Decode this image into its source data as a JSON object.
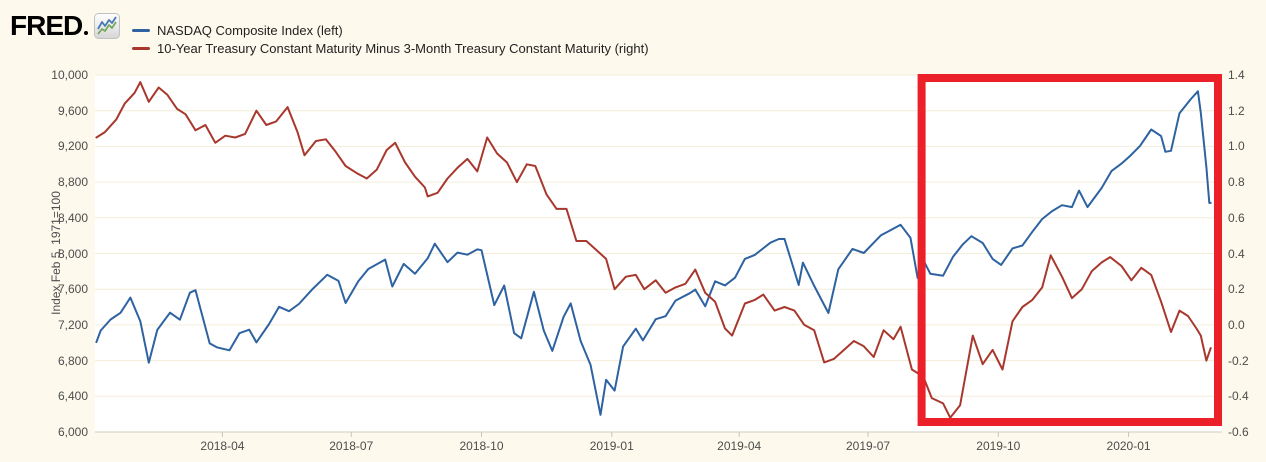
{
  "brand": {
    "logo_text": "FRED",
    "registered_mark_icon": "registered-dot",
    "sparkline_icon": "fred-sparkline-icon"
  },
  "legend": [
    {
      "label": "NASDAQ Composite Index (left)",
      "color": "#2e62a1"
    },
    {
      "label": "10-Year Treasury Constant Maturity Minus 3-Month Treasury Constant Maturity (right)",
      "color": "#a8382e"
    }
  ],
  "colors": {
    "background": "#fdf9ec",
    "plot_background": "#ffffff",
    "gridline": "#f3edd9",
    "axis_line": "#cfccbd",
    "tick": "#c9c6b8",
    "tick_text": "#4d4d4d",
    "legend_text": "#222222",
    "nasdaq_blue": "#2e62a1",
    "spread_red": "#a8382e",
    "annotation_red": "#ec2028",
    "logo_black": "#000000"
  },
  "chart_data": {
    "type": "line",
    "x_axis": {
      "range": [
        "2018-01-01",
        "2020-03-07"
      ],
      "ticks": [
        {
          "label": "2018-04",
          "date": "2018-04-01"
        },
        {
          "label": "2018-07",
          "date": "2018-07-01"
        },
        {
          "label": "2018-10",
          "date": "2018-10-01"
        },
        {
          "label": "2019-01",
          "date": "2019-01-01"
        },
        {
          "label": "2019-04",
          "date": "2019-04-01"
        },
        {
          "label": "2019-07",
          "date": "2019-07-01"
        },
        {
          "label": "2019-10",
          "date": "2019-10-01"
        },
        {
          "label": "2020-01",
          "date": "2020-01-01"
        }
      ],
      "vertical_grid": false
    },
    "left_y_axis": {
      "label": "Index Feb 5, 1971=100",
      "min": 6000,
      "max": 10000,
      "ticks": [
        {
          "label": "10,000",
          "value": 10000
        },
        {
          "label": "9,600",
          "value": 9600
        },
        {
          "label": "9,200",
          "value": 9200
        },
        {
          "label": "8,800",
          "value": 8800
        },
        {
          "label": "8,400",
          "value": 8400
        },
        {
          "label": "8,000",
          "value": 8000
        },
        {
          "label": "7,600",
          "value": 7600
        },
        {
          "label": "7,200",
          "value": 7200
        },
        {
          "label": "6,800",
          "value": 6800
        },
        {
          "label": "6,400",
          "value": 6400
        },
        {
          "label": "6,000",
          "value": 6000
        }
      ],
      "grid": true
    },
    "right_y_axis": {
      "min": -0.6,
      "max": 1.4,
      "ticks": [
        {
          "label": "1.4",
          "value": 1.4
        },
        {
          "label": "1.2",
          "value": 1.2
        },
        {
          "label": "1.0",
          "value": 1.0
        },
        {
          "label": "0.8",
          "value": 0.8
        },
        {
          "label": "0.6",
          "value": 0.6
        },
        {
          "label": "0.4",
          "value": 0.4
        },
        {
          "label": "0.2",
          "value": 0.2
        },
        {
          "label": "0.0",
          "value": 0.0
        },
        {
          "label": "-0.2",
          "value": -0.2
        },
        {
          "label": "-0.4",
          "value": -0.4
        },
        {
          "label": "-0.6",
          "value": -0.6
        }
      ]
    },
    "series": [
      {
        "name": "NASDAQ Composite Index",
        "axis": "left",
        "color": "#2e62a1",
        "points": [
          [
            "2018-01-02",
            7007
          ],
          [
            "2018-01-05",
            7137
          ],
          [
            "2018-01-12",
            7261
          ],
          [
            "2018-01-19",
            7336
          ],
          [
            "2018-01-26",
            7506
          ],
          [
            "2018-02-02",
            7241
          ],
          [
            "2018-02-08",
            6777
          ],
          [
            "2018-02-14",
            7144
          ],
          [
            "2018-02-23",
            7337
          ],
          [
            "2018-03-02",
            7258
          ],
          [
            "2018-03-09",
            7561
          ],
          [
            "2018-03-13",
            7589
          ],
          [
            "2018-03-23",
            6993
          ],
          [
            "2018-03-28",
            6949
          ],
          [
            "2018-04-06",
            6915
          ],
          [
            "2018-04-13",
            7107
          ],
          [
            "2018-04-20",
            7146
          ],
          [
            "2018-04-25",
            7004
          ],
          [
            "2018-05-04",
            7210
          ],
          [
            "2018-05-11",
            7403
          ],
          [
            "2018-05-18",
            7354
          ],
          [
            "2018-05-25",
            7434
          ],
          [
            "2018-06-04",
            7607
          ],
          [
            "2018-06-14",
            7761
          ],
          [
            "2018-06-22",
            7693
          ],
          [
            "2018-06-27",
            7445
          ],
          [
            "2018-07-06",
            7688
          ],
          [
            "2018-07-13",
            7826
          ],
          [
            "2018-07-25",
            7932
          ],
          [
            "2018-07-30",
            7630
          ],
          [
            "2018-08-07",
            7884
          ],
          [
            "2018-08-15",
            7774
          ],
          [
            "2018-08-24",
            7946
          ],
          [
            "2018-08-29",
            8110
          ],
          [
            "2018-09-07",
            7902
          ],
          [
            "2018-09-14",
            8010
          ],
          [
            "2018-09-21",
            7987
          ],
          [
            "2018-09-28",
            8046
          ],
          [
            "2018-10-01",
            8037
          ],
          [
            "2018-10-10",
            7422
          ],
          [
            "2018-10-17",
            7642
          ],
          [
            "2018-10-24",
            7108
          ],
          [
            "2018-10-29",
            7050
          ],
          [
            "2018-11-07",
            7571
          ],
          [
            "2018-11-14",
            7136
          ],
          [
            "2018-11-20",
            6909
          ],
          [
            "2018-11-28",
            7291
          ],
          [
            "2018-12-03",
            7441
          ],
          [
            "2018-12-10",
            7021
          ],
          [
            "2018-12-17",
            6754
          ],
          [
            "2018-12-24",
            6193
          ],
          [
            "2018-12-28",
            6585
          ],
          [
            "2019-01-03",
            6464
          ],
          [
            "2019-01-09",
            6957
          ],
          [
            "2019-01-18",
            7157
          ],
          [
            "2019-01-23",
            7026
          ],
          [
            "2019-02-01",
            7264
          ],
          [
            "2019-02-08",
            7298
          ],
          [
            "2019-02-15",
            7472
          ],
          [
            "2019-02-25",
            7554
          ],
          [
            "2019-03-01",
            7595
          ],
          [
            "2019-03-08",
            7408
          ],
          [
            "2019-03-15",
            7689
          ],
          [
            "2019-03-22",
            7643
          ],
          [
            "2019-03-29",
            7729
          ],
          [
            "2019-04-05",
            7939
          ],
          [
            "2019-04-12",
            7984
          ],
          [
            "2019-04-23",
            8121
          ],
          [
            "2019-04-29",
            8162
          ],
          [
            "2019-05-03",
            8164
          ],
          [
            "2019-05-13",
            7647
          ],
          [
            "2019-05-16",
            7898
          ],
          [
            "2019-05-24",
            7637
          ],
          [
            "2019-06-03",
            7333
          ],
          [
            "2019-06-10",
            7823
          ],
          [
            "2019-06-20",
            8051
          ],
          [
            "2019-06-28",
            8006
          ],
          [
            "2019-07-10",
            8203
          ],
          [
            "2019-07-24",
            8322
          ],
          [
            "2019-07-31",
            8175
          ],
          [
            "2019-08-05",
            7726
          ],
          [
            "2019-08-08",
            7959
          ],
          [
            "2019-08-14",
            7774
          ],
          [
            "2019-08-23",
            7751
          ],
          [
            "2019-08-30",
            7963
          ],
          [
            "2019-09-06",
            8103
          ],
          [
            "2019-09-12",
            8194
          ],
          [
            "2019-09-20",
            8118
          ],
          [
            "2019-09-27",
            7940
          ],
          [
            "2019-10-03",
            7872
          ],
          [
            "2019-10-11",
            8057
          ],
          [
            "2019-10-18",
            8090
          ],
          [
            "2019-10-25",
            8243
          ],
          [
            "2019-11-01",
            8386
          ],
          [
            "2019-11-08",
            8475
          ],
          [
            "2019-11-15",
            8541
          ],
          [
            "2019-11-22",
            8520
          ],
          [
            "2019-11-27",
            8705
          ],
          [
            "2019-12-03",
            8520
          ],
          [
            "2019-12-13",
            8735
          ],
          [
            "2019-12-20",
            8925
          ],
          [
            "2019-12-27",
            9007
          ],
          [
            "2020-01-02",
            9092
          ],
          [
            "2020-01-09",
            9203
          ],
          [
            "2020-01-17",
            9389
          ],
          [
            "2020-01-24",
            9315
          ],
          [
            "2020-01-27",
            9139
          ],
          [
            "2020-01-31",
            9151
          ],
          [
            "2020-02-06",
            9572
          ],
          [
            "2020-02-14",
            9731
          ],
          [
            "2020-02-19",
            9817
          ],
          [
            "2020-02-21",
            9577
          ],
          [
            "2020-02-25",
            8966
          ],
          [
            "2020-02-27",
            8567
          ],
          [
            "2020-02-28",
            8567
          ]
        ]
      },
      {
        "name": "10-Year Treasury Constant Maturity Minus 3-Month Treasury Constant Maturity",
        "axis": "right",
        "color": "#a8382e",
        "points": [
          [
            "2018-01-02",
            1.05
          ],
          [
            "2018-01-08",
            1.08
          ],
          [
            "2018-01-16",
            1.15
          ],
          [
            "2018-01-22",
            1.24
          ],
          [
            "2018-01-29",
            1.3
          ],
          [
            "2018-02-02",
            1.36
          ],
          [
            "2018-02-08",
            1.25
          ],
          [
            "2018-02-15",
            1.33
          ],
          [
            "2018-02-21",
            1.29
          ],
          [
            "2018-02-28",
            1.21
          ],
          [
            "2018-03-06",
            1.18
          ],
          [
            "2018-03-13",
            1.09
          ],
          [
            "2018-03-20",
            1.12
          ],
          [
            "2018-03-27",
            1.02
          ],
          [
            "2018-04-03",
            1.06
          ],
          [
            "2018-04-10",
            1.05
          ],
          [
            "2018-04-17",
            1.07
          ],
          [
            "2018-04-25",
            1.2
          ],
          [
            "2018-05-02",
            1.12
          ],
          [
            "2018-05-09",
            1.14
          ],
          [
            "2018-05-17",
            1.22
          ],
          [
            "2018-05-24",
            1.08
          ],
          [
            "2018-05-29",
            0.95
          ],
          [
            "2018-06-06",
            1.03
          ],
          [
            "2018-06-13",
            1.04
          ],
          [
            "2018-06-20",
            0.97
          ],
          [
            "2018-06-27",
            0.89
          ],
          [
            "2018-07-05",
            0.85
          ],
          [
            "2018-07-12",
            0.82
          ],
          [
            "2018-07-19",
            0.87
          ],
          [
            "2018-07-26",
            0.98
          ],
          [
            "2018-08-01",
            1.02
          ],
          [
            "2018-08-08",
            0.91
          ],
          [
            "2018-08-15",
            0.83
          ],
          [
            "2018-08-22",
            0.77
          ],
          [
            "2018-08-24",
            0.72
          ],
          [
            "2018-08-31",
            0.74
          ],
          [
            "2018-09-07",
            0.82
          ],
          [
            "2018-09-14",
            0.88
          ],
          [
            "2018-09-21",
            0.93
          ],
          [
            "2018-09-28",
            0.86
          ],
          [
            "2018-10-05",
            1.05
          ],
          [
            "2018-10-12",
            0.96
          ],
          [
            "2018-10-19",
            0.91
          ],
          [
            "2018-10-26",
            0.8
          ],
          [
            "2018-11-02",
            0.9
          ],
          [
            "2018-11-08",
            0.89
          ],
          [
            "2018-11-16",
            0.73
          ],
          [
            "2018-11-23",
            0.65
          ],
          [
            "2018-11-30",
            0.65
          ],
          [
            "2018-12-07",
            0.47
          ],
          [
            "2018-12-14",
            0.47
          ],
          [
            "2018-12-21",
            0.42
          ],
          [
            "2018-12-28",
            0.37
          ],
          [
            "2019-01-03",
            0.2
          ],
          [
            "2019-01-11",
            0.27
          ],
          [
            "2019-01-18",
            0.28
          ],
          [
            "2019-01-24",
            0.2
          ],
          [
            "2019-02-01",
            0.25
          ],
          [
            "2019-02-08",
            0.18
          ],
          [
            "2019-02-15",
            0.21
          ],
          [
            "2019-02-22",
            0.23
          ],
          [
            "2019-03-01",
            0.31
          ],
          [
            "2019-03-08",
            0.18
          ],
          [
            "2019-03-15",
            0.13
          ],
          [
            "2019-03-22",
            -0.02
          ],
          [
            "2019-03-27",
            -0.06
          ],
          [
            "2019-04-05",
            0.12
          ],
          [
            "2019-04-12",
            0.14
          ],
          [
            "2019-04-18",
            0.17
          ],
          [
            "2019-04-26",
            0.08
          ],
          [
            "2019-05-03",
            0.1
          ],
          [
            "2019-05-10",
            0.08
          ],
          [
            "2019-05-17",
            0.0
          ],
          [
            "2019-05-24",
            -0.03
          ],
          [
            "2019-05-31",
            -0.21
          ],
          [
            "2019-06-07",
            -0.19
          ],
          [
            "2019-06-14",
            -0.14
          ],
          [
            "2019-06-21",
            -0.09
          ],
          [
            "2019-06-28",
            -0.12
          ],
          [
            "2019-07-05",
            -0.18
          ],
          [
            "2019-07-12",
            -0.03
          ],
          [
            "2019-07-19",
            -0.08
          ],
          [
            "2019-07-24",
            -0.01
          ],
          [
            "2019-08-01",
            -0.25
          ],
          [
            "2019-08-09",
            -0.29
          ],
          [
            "2019-08-15",
            -0.41
          ],
          [
            "2019-08-23",
            -0.44
          ],
          [
            "2019-08-28",
            -0.52
          ],
          [
            "2019-09-04",
            -0.45
          ],
          [
            "2019-09-13",
            -0.06
          ],
          [
            "2019-09-20",
            -0.22
          ],
          [
            "2019-09-27",
            -0.14
          ],
          [
            "2019-10-04",
            -0.25
          ],
          [
            "2019-10-11",
            0.02
          ],
          [
            "2019-10-18",
            0.1
          ],
          [
            "2019-10-25",
            0.14
          ],
          [
            "2019-11-01",
            0.21
          ],
          [
            "2019-11-07",
            0.39
          ],
          [
            "2019-11-15",
            0.27
          ],
          [
            "2019-11-22",
            0.15
          ],
          [
            "2019-11-29",
            0.2
          ],
          [
            "2019-12-06",
            0.3
          ],
          [
            "2019-12-13",
            0.35
          ],
          [
            "2019-12-19",
            0.38
          ],
          [
            "2019-12-27",
            0.33
          ],
          [
            "2020-01-03",
            0.25
          ],
          [
            "2020-01-10",
            0.32
          ],
          [
            "2020-01-17",
            0.28
          ],
          [
            "2020-01-24",
            0.13
          ],
          [
            "2020-01-31",
            -0.04
          ],
          [
            "2020-02-06",
            0.08
          ],
          [
            "2020-02-12",
            0.05
          ],
          [
            "2020-02-18",
            -0.02
          ],
          [
            "2020-02-21",
            -0.06
          ],
          [
            "2020-02-25",
            -0.2
          ],
          [
            "2020-02-28",
            -0.13
          ]
        ]
      }
    ],
    "annotation": {
      "shape": "rectangle",
      "color": "#ec2028",
      "x_from": "2019-08-05",
      "x_to": "2020-03-07",
      "spans_full_height": true
    }
  }
}
